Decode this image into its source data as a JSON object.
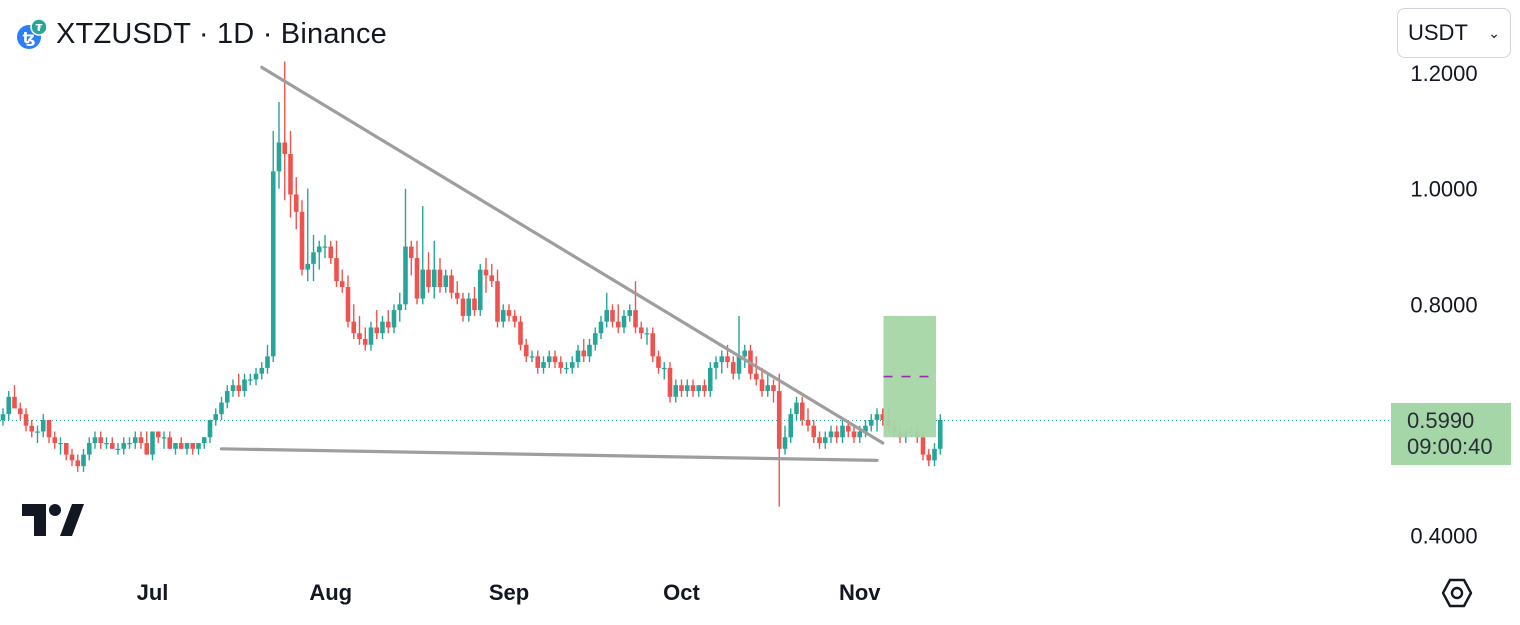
{
  "header": {
    "title": "XTZUSDT · 1D · Binance"
  },
  "currency_select": {
    "value": "USDT"
  },
  "price_tag": {
    "price": "0.5990",
    "countdown": "09:00:40"
  },
  "colors": {
    "up": "#26a69a",
    "down": "#ef5350",
    "trendline": "#9e9e9e",
    "target_box": "#a5d6a7",
    "target_mid": "#9c27b0"
  },
  "icons": {
    "logo": "tezos-logo-icon",
    "brand": "tradingview-logo-icon",
    "settings": "settings-hexagon-icon"
  },
  "chart_data": {
    "type": "candlestick",
    "title": "XTZUSDT · 1D · Binance",
    "xlabel": "",
    "ylabel": "",
    "ylim": [
      0.3,
      1.25
    ],
    "y_ticks": [
      {
        "value": 1.2,
        "label": "1.2000"
      },
      {
        "value": 1.0,
        "label": "1.0000"
      },
      {
        "value": 0.8,
        "label": "0.8000"
      },
      {
        "value": 0.4,
        "label": "0.4000"
      }
    ],
    "x_ticks": [
      {
        "date": "2024-07-01",
        "label": "Jul"
      },
      {
        "date": "2024-08-01",
        "label": "Aug"
      },
      {
        "date": "2024-09-01",
        "label": "Sep"
      },
      {
        "date": "2024-10-01",
        "label": "Oct"
      },
      {
        "date": "2024-11-01",
        "label": "Nov"
      }
    ],
    "start_date": "2024-06-05",
    "candles": [
      [
        0.6,
        0.62,
        0.59,
        0.61
      ],
      [
        0.61,
        0.65,
        0.6,
        0.64
      ],
      [
        0.64,
        0.66,
        0.62,
        0.62
      ],
      [
        0.62,
        0.63,
        0.6,
        0.61
      ],
      [
        0.61,
        0.62,
        0.58,
        0.59
      ],
      [
        0.59,
        0.6,
        0.57,
        0.58
      ],
      [
        0.58,
        0.59,
        0.56,
        0.58
      ],
      [
        0.58,
        0.61,
        0.57,
        0.6
      ],
      [
        0.6,
        0.6,
        0.56,
        0.57
      ],
      [
        0.57,
        0.58,
        0.55,
        0.56
      ],
      [
        0.56,
        0.57,
        0.54,
        0.56
      ],
      [
        0.56,
        0.56,
        0.53,
        0.54
      ],
      [
        0.54,
        0.55,
        0.52,
        0.53
      ],
      [
        0.53,
        0.54,
        0.51,
        0.52
      ],
      [
        0.52,
        0.55,
        0.51,
        0.54
      ],
      [
        0.54,
        0.57,
        0.53,
        0.56
      ],
      [
        0.56,
        0.58,
        0.55,
        0.57
      ],
      [
        0.57,
        0.58,
        0.55,
        0.56
      ],
      [
        0.56,
        0.57,
        0.55,
        0.56
      ],
      [
        0.56,
        0.57,
        0.55,
        0.55
      ],
      [
        0.55,
        0.56,
        0.54,
        0.55
      ],
      [
        0.55,
        0.57,
        0.54,
        0.56
      ],
      [
        0.56,
        0.57,
        0.55,
        0.56
      ],
      [
        0.56,
        0.58,
        0.55,
        0.57
      ],
      [
        0.57,
        0.58,
        0.55,
        0.56
      ],
      [
        0.56,
        0.58,
        0.54,
        0.54
      ],
      [
        0.54,
        0.58,
        0.53,
        0.58
      ],
      [
        0.58,
        0.58,
        0.56,
        0.57
      ],
      [
        0.57,
        0.58,
        0.55,
        0.57
      ],
      [
        0.57,
        0.58,
        0.55,
        0.55
      ],
      [
        0.55,
        0.56,
        0.54,
        0.56
      ],
      [
        0.56,
        0.57,
        0.55,
        0.55
      ],
      [
        0.55,
        0.56,
        0.54,
        0.56
      ],
      [
        0.56,
        0.56,
        0.54,
        0.55
      ],
      [
        0.55,
        0.56,
        0.54,
        0.56
      ],
      [
        0.56,
        0.57,
        0.55,
        0.57
      ],
      [
        0.57,
        0.6,
        0.56,
        0.6
      ],
      [
        0.6,
        0.62,
        0.59,
        0.61
      ],
      [
        0.61,
        0.64,
        0.6,
        0.63
      ],
      [
        0.63,
        0.66,
        0.62,
        0.65
      ],
      [
        0.65,
        0.67,
        0.64,
        0.66
      ],
      [
        0.66,
        0.68,
        0.64,
        0.65
      ],
      [
        0.65,
        0.68,
        0.64,
        0.67
      ],
      [
        0.67,
        0.68,
        0.66,
        0.67
      ],
      [
        0.67,
        0.69,
        0.66,
        0.68
      ],
      [
        0.68,
        0.7,
        0.67,
        0.69
      ],
      [
        0.69,
        0.73,
        0.68,
        0.71
      ],
      [
        0.71,
        1.1,
        0.7,
        1.03
      ],
      [
        1.03,
        1.15,
        1.0,
        1.08
      ],
      [
        1.08,
        1.22,
        0.98,
        1.06
      ],
      [
        1.06,
        1.1,
        0.95,
        0.99
      ],
      [
        0.99,
        1.02,
        0.93,
        0.96
      ],
      [
        0.96,
        0.98,
        0.85,
        0.86
      ],
      [
        0.86,
        1.0,
        0.84,
        0.87
      ],
      [
        0.87,
        0.92,
        0.84,
        0.89
      ],
      [
        0.89,
        0.91,
        0.86,
        0.9
      ],
      [
        0.9,
        0.92,
        0.88,
        0.9
      ],
      [
        0.9,
        0.91,
        0.87,
        0.88
      ],
      [
        0.88,
        0.91,
        0.83,
        0.84
      ],
      [
        0.84,
        0.86,
        0.82,
        0.83
      ],
      [
        0.83,
        0.85,
        0.76,
        0.77
      ],
      [
        0.77,
        0.8,
        0.74,
        0.75
      ],
      [
        0.75,
        0.78,
        0.73,
        0.74
      ],
      [
        0.74,
        0.76,
        0.72,
        0.73
      ],
      [
        0.73,
        0.77,
        0.72,
        0.76
      ],
      [
        0.76,
        0.79,
        0.74,
        0.75
      ],
      [
        0.75,
        0.78,
        0.74,
        0.77
      ],
      [
        0.77,
        0.79,
        0.75,
        0.76
      ],
      [
        0.76,
        0.8,
        0.75,
        0.79
      ],
      [
        0.79,
        0.82,
        0.77,
        0.8
      ],
      [
        0.8,
        1.0,
        0.79,
        0.9
      ],
      [
        0.9,
        0.91,
        0.85,
        0.88
      ],
      [
        0.88,
        0.91,
        0.8,
        0.81
      ],
      [
        0.81,
        0.97,
        0.8,
        0.86
      ],
      [
        0.86,
        0.89,
        0.82,
        0.83
      ],
      [
        0.83,
        0.91,
        0.81,
        0.86
      ],
      [
        0.86,
        0.88,
        0.82,
        0.83
      ],
      [
        0.83,
        0.86,
        0.82,
        0.85
      ],
      [
        0.85,
        0.86,
        0.81,
        0.82
      ],
      [
        0.82,
        0.84,
        0.8,
        0.81
      ],
      [
        0.81,
        0.82,
        0.77,
        0.78
      ],
      [
        0.78,
        0.82,
        0.77,
        0.81
      ],
      [
        0.81,
        0.83,
        0.78,
        0.79
      ],
      [
        0.79,
        0.87,
        0.78,
        0.86
      ],
      [
        0.86,
        0.88,
        0.82,
        0.85
      ],
      [
        0.85,
        0.87,
        0.83,
        0.84
      ],
      [
        0.84,
        0.86,
        0.76,
        0.77
      ],
      [
        0.77,
        0.8,
        0.76,
        0.79
      ],
      [
        0.79,
        0.8,
        0.77,
        0.78
      ],
      [
        0.78,
        0.79,
        0.76,
        0.77
      ],
      [
        0.77,
        0.78,
        0.72,
        0.73
      ],
      [
        0.73,
        0.74,
        0.7,
        0.71
      ],
      [
        0.71,
        0.72,
        0.7,
        0.71
      ],
      [
        0.71,
        0.72,
        0.68,
        0.69
      ],
      [
        0.69,
        0.71,
        0.68,
        0.7
      ],
      [
        0.7,
        0.72,
        0.69,
        0.71
      ],
      [
        0.71,
        0.72,
        0.69,
        0.7
      ],
      [
        0.7,
        0.71,
        0.68,
        0.69
      ],
      [
        0.69,
        0.7,
        0.68,
        0.69
      ],
      [
        0.69,
        0.71,
        0.68,
        0.7
      ],
      [
        0.7,
        0.73,
        0.69,
        0.72
      ],
      [
        0.72,
        0.74,
        0.7,
        0.71
      ],
      [
        0.71,
        0.74,
        0.7,
        0.73
      ],
      [
        0.73,
        0.76,
        0.72,
        0.75
      ],
      [
        0.75,
        0.78,
        0.74,
        0.77
      ],
      [
        0.77,
        0.82,
        0.76,
        0.79
      ],
      [
        0.79,
        0.8,
        0.76,
        0.77
      ],
      [
        0.77,
        0.8,
        0.75,
        0.76
      ],
      [
        0.76,
        0.79,
        0.75,
        0.78
      ],
      [
        0.78,
        0.8,
        0.77,
        0.79
      ],
      [
        0.79,
        0.84,
        0.75,
        0.76
      ],
      [
        0.76,
        0.77,
        0.74,
        0.75
      ],
      [
        0.75,
        0.76,
        0.73,
        0.75
      ],
      [
        0.75,
        0.76,
        0.7,
        0.71
      ],
      [
        0.71,
        0.72,
        0.68,
        0.69
      ],
      [
        0.69,
        0.7,
        0.67,
        0.69
      ],
      [
        0.69,
        0.7,
        0.63,
        0.64
      ],
      [
        0.64,
        0.67,
        0.63,
        0.66
      ],
      [
        0.66,
        0.67,
        0.64,
        0.65
      ],
      [
        0.65,
        0.67,
        0.64,
        0.66
      ],
      [
        0.66,
        0.67,
        0.64,
        0.65
      ],
      [
        0.65,
        0.66,
        0.64,
        0.66
      ],
      [
        0.66,
        0.67,
        0.64,
        0.65
      ],
      [
        0.65,
        0.7,
        0.64,
        0.69
      ],
      [
        0.69,
        0.71,
        0.67,
        0.7
      ],
      [
        0.7,
        0.72,
        0.68,
        0.71
      ],
      [
        0.71,
        0.73,
        0.69,
        0.7
      ],
      [
        0.7,
        0.71,
        0.67,
        0.68
      ],
      [
        0.68,
        0.78,
        0.67,
        0.71
      ],
      [
        0.71,
        0.73,
        0.69,
        0.72
      ],
      [
        0.72,
        0.73,
        0.67,
        0.68
      ],
      [
        0.68,
        0.71,
        0.66,
        0.67
      ],
      [
        0.67,
        0.69,
        0.64,
        0.65
      ],
      [
        0.65,
        0.68,
        0.64,
        0.66
      ],
      [
        0.66,
        0.67,
        0.63,
        0.65
      ],
      [
        0.65,
        0.68,
        0.45,
        0.55
      ],
      [
        0.55,
        0.59,
        0.54,
        0.57
      ],
      [
        0.57,
        0.62,
        0.56,
        0.61
      ],
      [
        0.61,
        0.64,
        0.6,
        0.63
      ],
      [
        0.63,
        0.64,
        0.59,
        0.6
      ],
      [
        0.6,
        0.62,
        0.58,
        0.59
      ],
      [
        0.59,
        0.6,
        0.56,
        0.57
      ],
      [
        0.57,
        0.58,
        0.55,
        0.56
      ],
      [
        0.56,
        0.58,
        0.55,
        0.57
      ],
      [
        0.57,
        0.59,
        0.56,
        0.58
      ],
      [
        0.58,
        0.59,
        0.56,
        0.57
      ],
      [
        0.57,
        0.6,
        0.56,
        0.59
      ],
      [
        0.59,
        0.6,
        0.57,
        0.58
      ],
      [
        0.58,
        0.59,
        0.56,
        0.57
      ],
      [
        0.57,
        0.59,
        0.56,
        0.58
      ],
      [
        0.58,
        0.6,
        0.57,
        0.59
      ],
      [
        0.59,
        0.61,
        0.58,
        0.6
      ],
      [
        0.6,
        0.62,
        0.58,
        0.61
      ],
      [
        0.61,
        0.62,
        0.59,
        0.6
      ],
      [
        0.6,
        0.62,
        0.58,
        0.59
      ],
      [
        0.59,
        0.6,
        0.57,
        0.58
      ],
      [
        0.58,
        0.59,
        0.56,
        0.57
      ],
      [
        0.57,
        0.58,
        0.56,
        0.58
      ],
      [
        0.58,
        0.59,
        0.57,
        0.58
      ],
      [
        0.58,
        0.59,
        0.56,
        0.57
      ],
      [
        0.57,
        0.58,
        0.53,
        0.54
      ],
      [
        0.54,
        0.55,
        0.52,
        0.53
      ],
      [
        0.53,
        0.56,
        0.52,
        0.55
      ],
      [
        0.55,
        0.61,
        0.54,
        0.6
      ]
    ],
    "trendlines": [
      {
        "from": {
          "date": "2024-07-20",
          "price": 1.21
        },
        "to": {
          "date": "2024-11-05",
          "price": 0.56
        }
      },
      {
        "from": {
          "date": "2024-07-13",
          "price": 0.55
        },
        "to": {
          "date": "2024-11-04",
          "price": 0.53
        }
      }
    ],
    "target_box": {
      "date_start": "2024-11-06",
      "date_end": "2024-11-08",
      "price_top": 0.78,
      "price_bottom": 0.57,
      "price_mid": 0.675
    },
    "last_price_line": 0.599,
    "grid": false,
    "legend": "none"
  }
}
